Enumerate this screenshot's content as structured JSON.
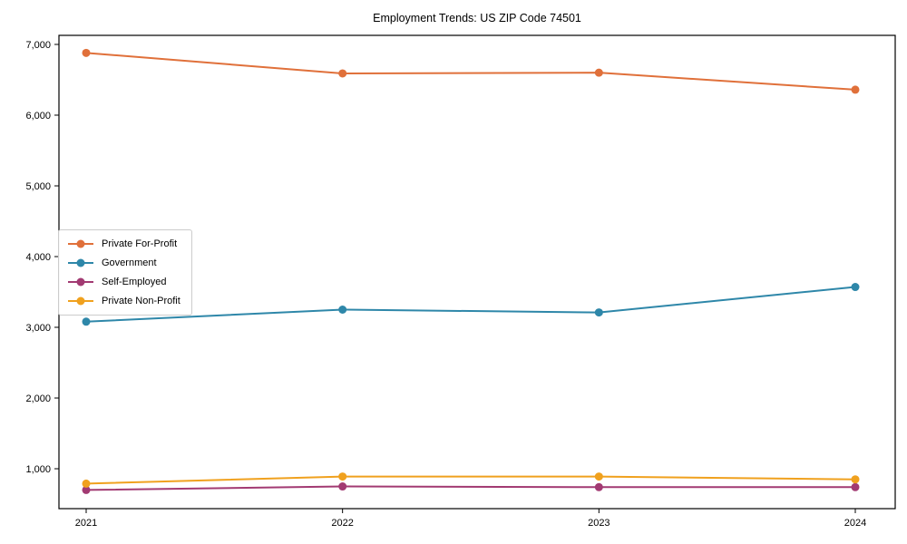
{
  "title": "Employment Trends: US ZIP Code 74501",
  "chart_data": {
    "type": "line",
    "x": [
      2021,
      2022,
      2023,
      2024
    ],
    "x_tick_labels": [
      "2021",
      "2022",
      "2023",
      "2024"
    ],
    "y_ticks": [
      1000,
      2000,
      3000,
      4000,
      5000,
      6000,
      7000
    ],
    "y_tick_labels": [
      "1,000",
      "2,000",
      "3,000",
      "4,000",
      "5,000",
      "6,000",
      "7,000"
    ],
    "ylim": [
      436,
      7128
    ],
    "grid": false,
    "legend_position": "center-left",
    "marker": "circle",
    "series": [
      {
        "name": "Private For-Profit",
        "color": "#E0703A",
        "values": [
          6880,
          6590,
          6600,
          6360
        ]
      },
      {
        "name": "Government",
        "color": "#2E87A9",
        "values": [
          3080,
          3250,
          3210,
          3570
        ]
      },
      {
        "name": "Self-Employed",
        "color": "#A23A72",
        "values": [
          700,
          750,
          740,
          740
        ]
      },
      {
        "name": "Private Non-Profit",
        "color": "#F0A11E",
        "values": [
          790,
          890,
          890,
          850
        ]
      }
    ]
  }
}
